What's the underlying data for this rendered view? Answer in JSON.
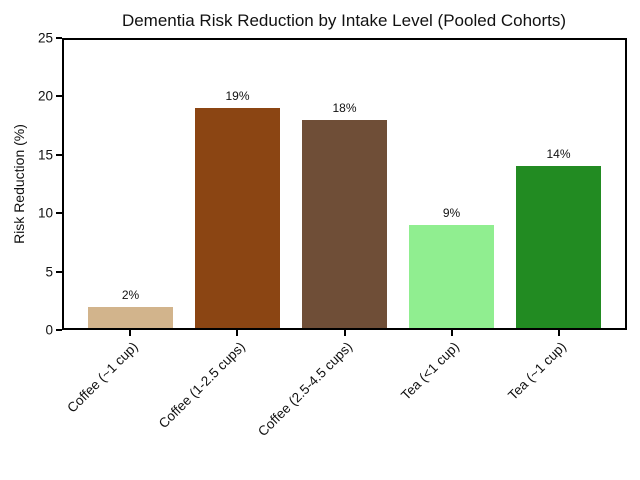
{
  "figure": {
    "background": "#ffffff",
    "axis_color": "#000000",
    "text_color": "#111111"
  },
  "chart_data": {
    "type": "bar",
    "title": "Dementia Risk Reduction by Intake Level (Pooled Cohorts)",
    "categories": [
      "Coffee (~1 cup)",
      "Coffee (1-2.5 cups)",
      "Coffee (2.5-4.5 cups)",
      "Tea (<1 cup)",
      "Tea (~1 cup)"
    ],
    "values": [
      2,
      19,
      18,
      9,
      14
    ],
    "bar_labels": [
      "2%",
      "19%",
      "18%",
      "9%",
      "14%"
    ],
    "bar_colors": [
      "#D2B48C",
      "#8B4513",
      "#6F4E37",
      "#90EE90",
      "#228B22"
    ],
    "xlabel": "",
    "ylabel": "Risk Reduction (%)",
    "ylim": [
      0,
      25
    ],
    "yticks": [
      0,
      5,
      10,
      15,
      20,
      25
    ],
    "xtick_rotation_deg": 45,
    "grid": false,
    "legend": "none"
  }
}
